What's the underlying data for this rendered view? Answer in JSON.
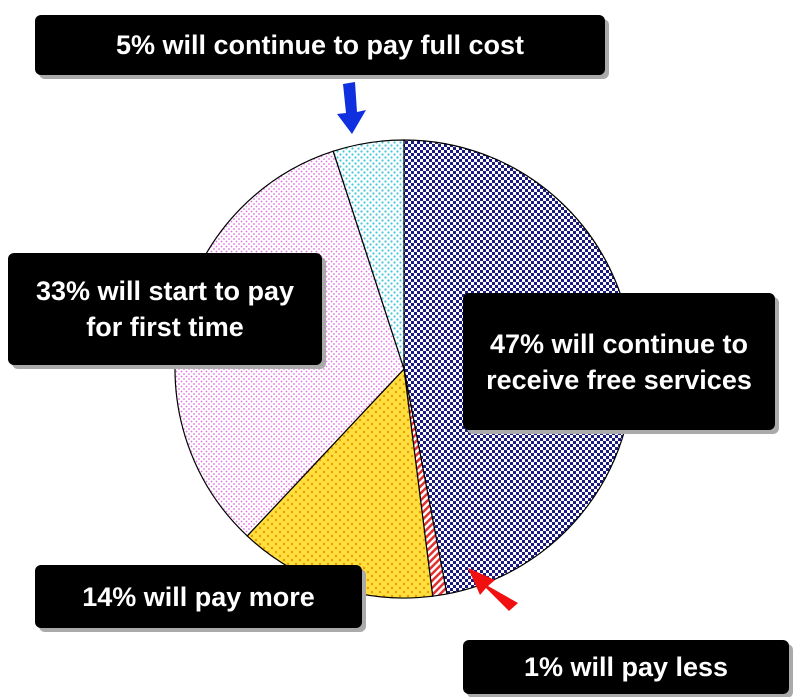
{
  "chart_data": {
    "type": "pie",
    "values": [
      47,
      1,
      14,
      33,
      5
    ],
    "value_labels": [
      "47% will continue to receive free services",
      "1% will pay less",
      "14% will pay more",
      "33% will start to pay for first time",
      "5% will continue to pay full cost"
    ],
    "colors": [
      "#1a1a80",
      "#e03030",
      "#f0c020",
      "#e070e0",
      "#40c8d8"
    ]
  }
}
